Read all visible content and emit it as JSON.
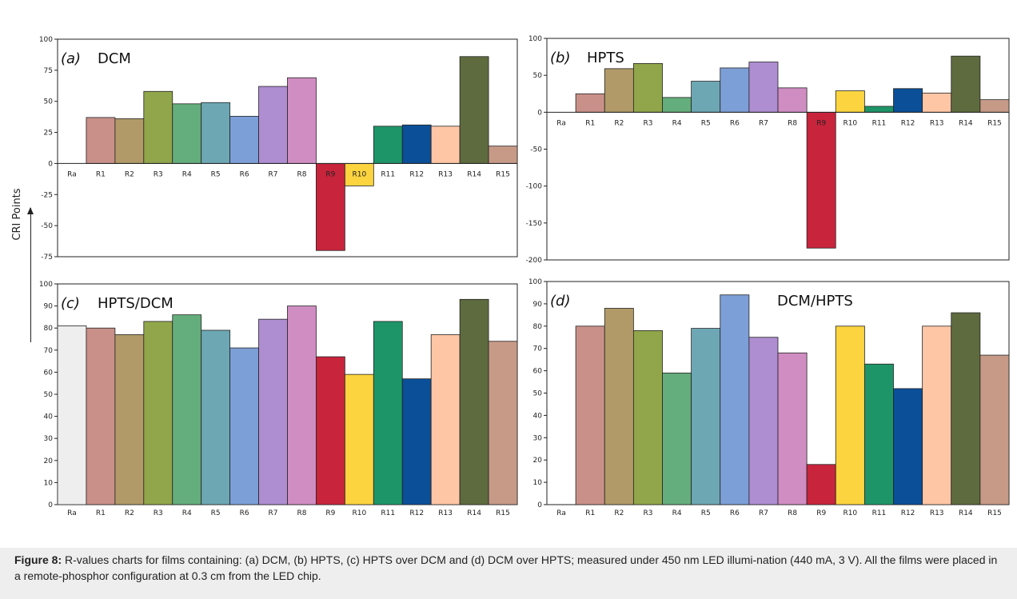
{
  "caption": {
    "label": "Figure 8:",
    "text": " R-values charts for films containing: (a) DCM, (b) HPTS, (c) HPTS over DCM and (d) DCM over HPTS; measured under 450 nm LED illumi-nation (440 mA, 3 V). All the films were placed in a remote-phosphor configuration at 0.3 cm from the LED chip."
  },
  "y_axis_label": "CRI Points",
  "colors": {
    "Ra": "#eeeeee",
    "R1": "#c99089",
    "R2": "#b19a68",
    "R3": "#91a64b",
    "R4": "#64ad7c",
    "R5": "#6da7b4",
    "R6": "#7d9fd7",
    "R7": "#ae8dd1",
    "R8": "#cf8dc2",
    "R9": "#c8243c",
    "R10": "#fbd43f",
    "R11": "#1e9568",
    "R12": "#0a4f98",
    "R13": "#ffc6a6",
    "R14": "#5e6b3e",
    "R15": "#c69a87"
  },
  "chart_data": [
    {
      "type": "bar",
      "panel": "(a)",
      "title": "DCM",
      "categories": [
        "Ra",
        "R1",
        "R2",
        "R3",
        "R4",
        "R5",
        "R6",
        "R7",
        "R8",
        "R9",
        "R10",
        "R11",
        "R12",
        "R13",
        "R14",
        "R15"
      ],
      "values": [
        null,
        37,
        36,
        58,
        48,
        49,
        38,
        62,
        69,
        -70,
        -18,
        30,
        31,
        30,
        86,
        14
      ],
      "ylim": [
        -75,
        100
      ],
      "yticks": [
        -75,
        -50,
        -25,
        0,
        25,
        50,
        75,
        100
      ]
    },
    {
      "type": "bar",
      "panel": "(b)",
      "title": "HPTS",
      "categories": [
        "Ra",
        "R1",
        "R2",
        "R3",
        "R4",
        "R5",
        "R6",
        "R7",
        "R8",
        "R9",
        "R10",
        "R11",
        "R12",
        "R13",
        "R14",
        "R15"
      ],
      "values": [
        null,
        25,
        59,
        66,
        20,
        42,
        60,
        68,
        33,
        -184,
        29,
        8,
        32,
        26,
        76,
        17
      ],
      "ylim": [
        -200,
        100
      ],
      "yticks": [
        -200,
        -150,
        -100,
        -50,
        0,
        50,
        100
      ]
    },
    {
      "type": "bar",
      "panel": "(c)",
      "title": "HPTS/DCM",
      "categories": [
        "Ra",
        "R1",
        "R2",
        "R3",
        "R4",
        "R5",
        "R6",
        "R7",
        "R8",
        "R9",
        "R10",
        "R11",
        "R12",
        "R13",
        "R14",
        "R15"
      ],
      "values": [
        81,
        80,
        77,
        83,
        86,
        79,
        71,
        84,
        90,
        67,
        59,
        83,
        57,
        77,
        93,
        74
      ],
      "ylim": [
        0,
        100
      ],
      "yticks": [
        0,
        10,
        20,
        30,
        40,
        50,
        60,
        70,
        80,
        90,
        100
      ]
    },
    {
      "type": "bar",
      "panel": "(d)",
      "title": "DCM/HPTS",
      "categories": [
        "Ra",
        "R1",
        "R2",
        "R3",
        "R4",
        "R5",
        "R6",
        "R7",
        "R8",
        "R9",
        "R10",
        "R11",
        "R12",
        "R13",
        "R14",
        "R15"
      ],
      "values": [
        null,
        80,
        88,
        78,
        59,
        79,
        94,
        75,
        68,
        18,
        80,
        63,
        52,
        80,
        86,
        67
      ],
      "ylim": [
        0,
        100
      ],
      "yticks": [
        0,
        10,
        20,
        30,
        40,
        50,
        60,
        70,
        80,
        90,
        100
      ]
    }
  ]
}
